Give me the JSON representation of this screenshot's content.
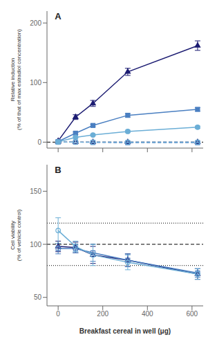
{
  "chart_data": [
    {
      "type": "line",
      "annotations": [
        "A"
      ],
      "x": [
        0,
        78,
        156,
        312,
        625
      ],
      "xlim": [
        -50,
        650
      ],
      "xticks": [
        0,
        200,
        400,
        600
      ],
      "tick_labels": "y",
      "ylim": [
        -10,
        220
      ],
      "yticks": [
        0,
        100,
        200
      ],
      "ylabel": "Relative induction\n(% of that of max estradiol concentration)",
      "grid": false,
      "hlines": [
        {
          "y": 0,
          "color": "#000000",
          "line_style": "dashed"
        }
      ],
      "series": [
        {
          "color": "#1c1c72",
          "marker": "triangle",
          "line_style": "solid",
          "values": [
            2,
            42,
            65,
            118,
            162
          ],
          "yerr": [
            1,
            4,
            5,
            6,
            8
          ]
        },
        {
          "color": "#1c1c72",
          "marker": "triangle_open",
          "line_style": "dashed",
          "values": [
            0,
            0,
            0,
            0,
            0
          ],
          "yerr": [
            0.3,
            0.3,
            0.3,
            0.3,
            0.3
          ]
        },
        {
          "color": "#4a7fc1",
          "marker": "square",
          "line_style": "solid",
          "values": [
            1,
            15,
            28,
            45,
            55
          ],
          "yerr": [
            0.5,
            2,
            2,
            3,
            3
          ]
        },
        {
          "color": "#4a7fc1",
          "marker": "square_open",
          "line_style": "dashed",
          "values": [
            0,
            0,
            -0.5,
            -1,
            -1
          ],
          "yerr": [
            0.3,
            0.3,
            0.3,
            0.3,
            0.3
          ]
        },
        {
          "color": "#6baed6",
          "marker": "circle",
          "line_style": "solid",
          "values": [
            0.5,
            8,
            12,
            18,
            25
          ],
          "yerr": [
            0.5,
            1,
            1,
            2,
            2
          ]
        },
        {
          "color": "#6baed6",
          "marker": "circle_open",
          "line_style": "dashed",
          "values": [
            0,
            0,
            0,
            0,
            0
          ],
          "yerr": [
            0.3,
            0.3,
            0.3,
            0.3,
            0.3
          ]
        }
      ]
    },
    {
      "type": "line",
      "annotations": [
        "B"
      ],
      "x": [
        0,
        78,
        156,
        312,
        625
      ],
      "xlim": [
        -50,
        650
      ],
      "xticks": [
        0,
        200,
        400,
        600
      ],
      "xlabel": "Breakfast cereal in well (μg)",
      "ylim": [
        42,
        175
      ],
      "yticks": [
        50,
        100,
        150
      ],
      "ylabel": "Cell viability\n(% of vehicle control)",
      "grid": false,
      "hlines": [
        {
          "y": 120,
          "color": "#000000",
          "line_style": "dotted"
        },
        {
          "y": 100,
          "color": "#000000",
          "line_style": "dashed"
        },
        {
          "y": 80,
          "color": "#000000",
          "line_style": "dotted"
        }
      ],
      "series": [
        {
          "color": "#1c1c72",
          "marker": "triangle_open",
          "line_style": "solid",
          "values": [
            98,
            97,
            90,
            85,
            72
          ],
          "yerr": [
            5,
            5,
            8,
            6,
            5
          ]
        },
        {
          "color": "#4a7fc1",
          "marker": "square_open",
          "line_style": "solid",
          "values": [
            96,
            96,
            92,
            85,
            73
          ],
          "yerr": [
            5,
            4,
            8,
            6,
            4
          ]
        },
        {
          "color": "#6baed6",
          "marker": "circle_open",
          "line_style": "solid",
          "values": [
            113,
            98,
            90,
            83,
            72
          ],
          "yerr": [
            12,
            5,
            10,
            7,
            5
          ]
        }
      ]
    }
  ]
}
